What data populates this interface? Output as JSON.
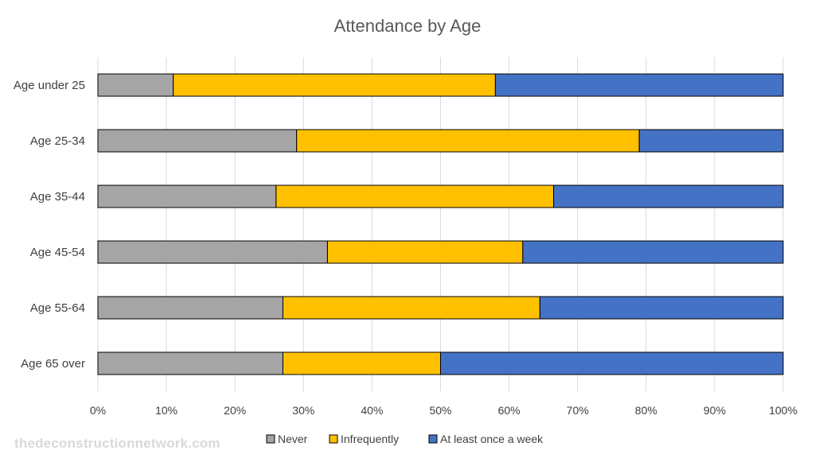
{
  "chart_data": {
    "type": "bar",
    "orientation": "horizontal",
    "stacked": "percent",
    "title": "Attendance by Age",
    "categories": [
      "Age under 25",
      "Age 25-34",
      "Age 35-44",
      "Age 45-54",
      "Age 55-64",
      "Age 65 over"
    ],
    "series": [
      {
        "name": "Never",
        "color": "#a5a5a5",
        "values": [
          11,
          29,
          26,
          33.5,
          27,
          27
        ]
      },
      {
        "name": "Infrequently",
        "color": "#ffc000",
        "values": [
          47,
          50,
          40.5,
          28.5,
          37.5,
          23
        ]
      },
      {
        "name": "At least once a week",
        "color": "#4472c4",
        "values": [
          42,
          21,
          33.5,
          38,
          35.5,
          50
        ]
      }
    ],
    "xlim": [
      0,
      100
    ],
    "x_ticks": [
      "0%",
      "10%",
      "20%",
      "30%",
      "40%",
      "50%",
      "60%",
      "70%",
      "80%",
      "90%",
      "100%"
    ],
    "grid": true,
    "legend_position": "bottom"
  },
  "watermark": "thedeconstructionnetwork.com"
}
